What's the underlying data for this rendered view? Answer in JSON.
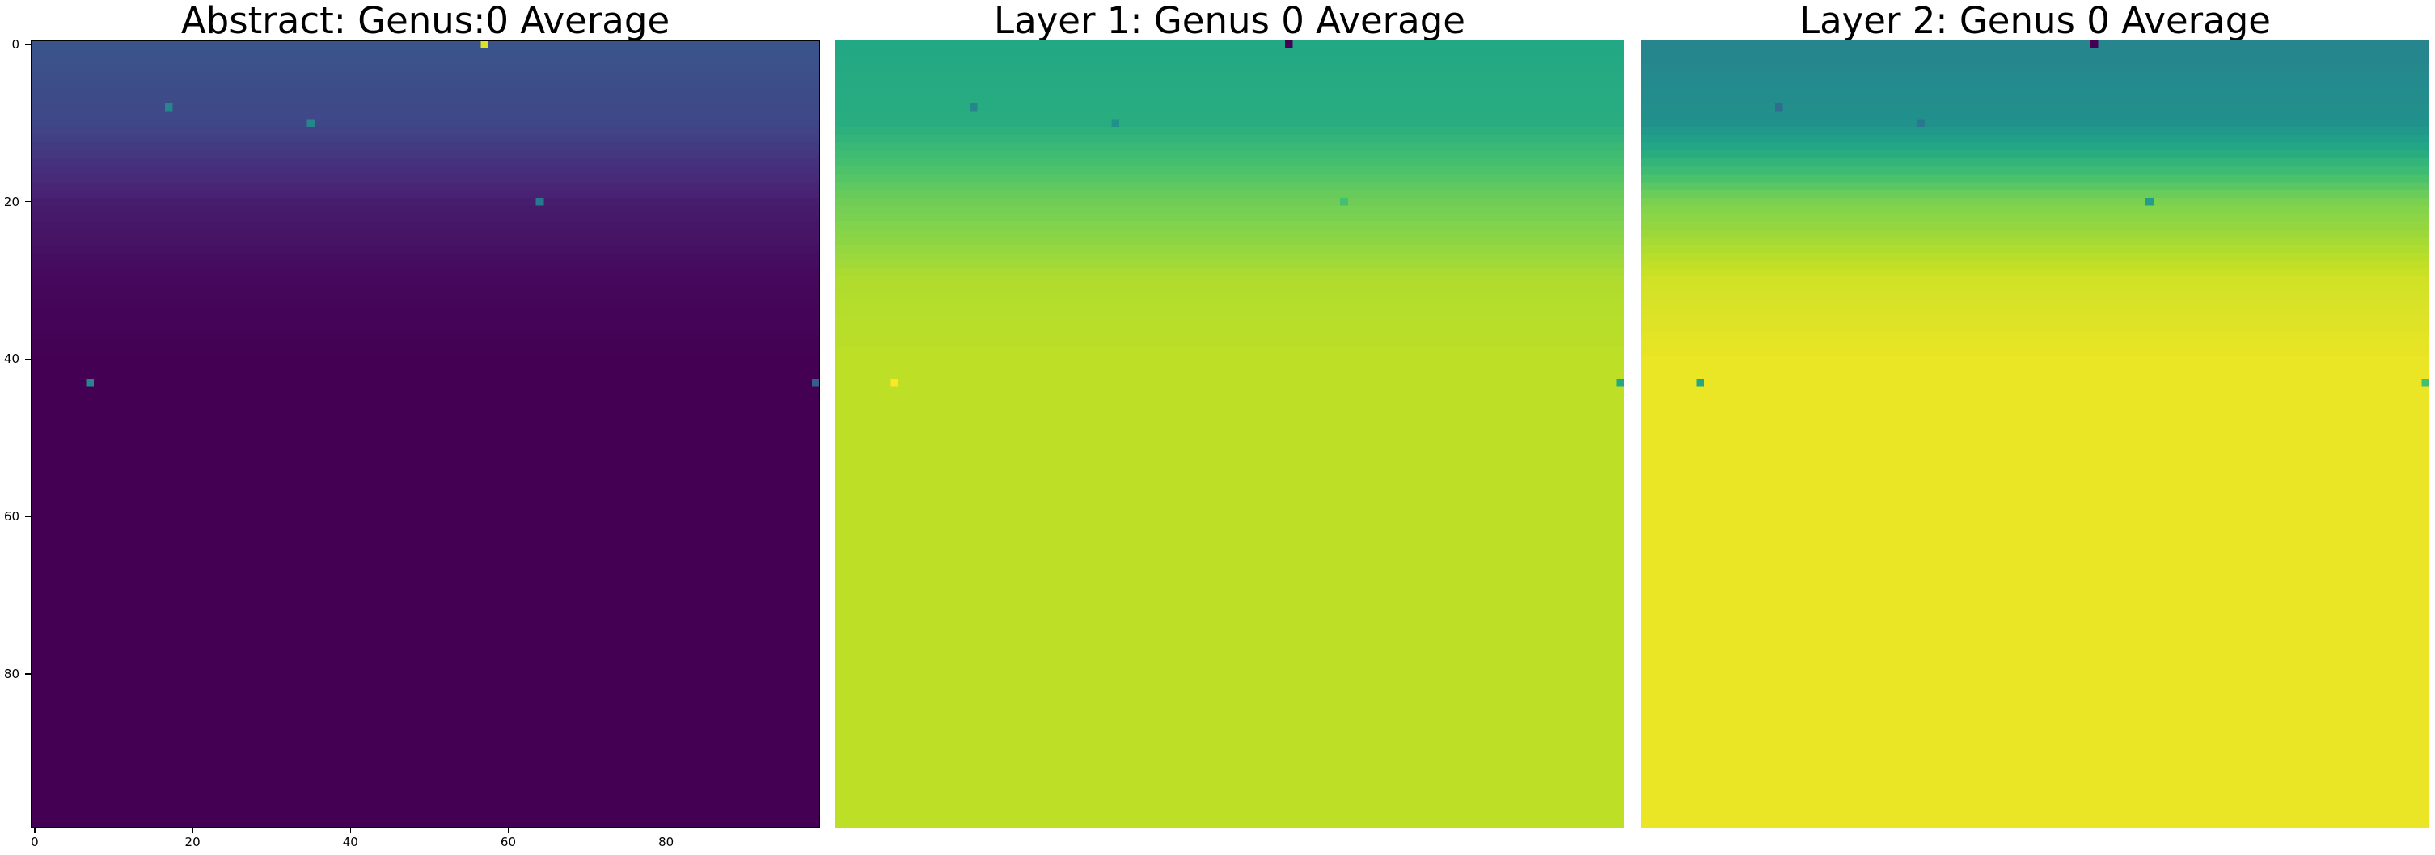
{
  "chart_data": [
    {
      "type": "heatmap",
      "title": "Abstract: Genus:0 Average",
      "colormap": "viridis",
      "grid_shape": [
        100,
        100
      ],
      "xlim": [
        -0.5,
        99.5
      ],
      "ylim": [
        99.5,
        -0.5
      ],
      "show_axes": true,
      "xticks": [
        0,
        20,
        40,
        60,
        80
      ],
      "yticks": [
        0,
        20,
        40,
        60,
        80
      ],
      "grid": false,
      "row_values": {
        "rows": [
          0,
          10,
          20,
          30,
          40,
          60,
          99
        ],
        "values": [
          0.26,
          0.21,
          0.08,
          0.02,
          0.0,
          0.0,
          0.0
        ]
      },
      "highlights": [
        {
          "row": 0,
          "col": 57,
          "value": 0.95
        },
        {
          "row": 8,
          "col": 17,
          "value": 0.45
        },
        {
          "row": 10,
          "col": 35,
          "value": 0.45
        },
        {
          "row": 20,
          "col": 64,
          "value": 0.4
        },
        {
          "row": 43,
          "col": 7,
          "value": 0.45
        },
        {
          "row": 43,
          "col": 99,
          "value": 0.3
        }
      ]
    },
    {
      "type": "heatmap",
      "title": "Layer 1: Genus 0 Average",
      "colormap": "viridis",
      "grid_shape": [
        100,
        100
      ],
      "show_axes": false,
      "row_values": {
        "rows": [
          0,
          10,
          20,
          30,
          40,
          60,
          99
        ],
        "values": [
          0.6,
          0.62,
          0.78,
          0.88,
          0.9,
          0.9,
          0.9
        ]
      },
      "highlights": [
        {
          "row": 0,
          "col": 57,
          "value": 0.0
        },
        {
          "row": 8,
          "col": 17,
          "value": 0.45
        },
        {
          "row": 10,
          "col": 35,
          "value": 0.5
        },
        {
          "row": 20,
          "col": 64,
          "value": 0.7
        },
        {
          "row": 43,
          "col": 7,
          "value": 1.0
        },
        {
          "row": 43,
          "col": 99,
          "value": 0.6
        }
      ]
    },
    {
      "type": "heatmap",
      "title": "Layer 2: Genus 0 Average",
      "colormap": "viridis",
      "grid_shape": [
        100,
        100
      ],
      "show_axes": false,
      "row_values": {
        "rows": [
          0,
          10,
          20,
          30,
          40,
          60,
          99
        ],
        "values": [
          0.45,
          0.5,
          0.8,
          0.93,
          0.97,
          0.97,
          0.97
        ]
      },
      "highlights": [
        {
          "row": 0,
          "col": 57,
          "value": 0.0
        },
        {
          "row": 8,
          "col": 17,
          "value": 0.35
        },
        {
          "row": 10,
          "col": 35,
          "value": 0.4
        },
        {
          "row": 20,
          "col": 64,
          "value": 0.55
        },
        {
          "row": 43,
          "col": 7,
          "value": 0.6
        },
        {
          "row": 43,
          "col": 99,
          "value": 0.7
        }
      ]
    }
  ]
}
